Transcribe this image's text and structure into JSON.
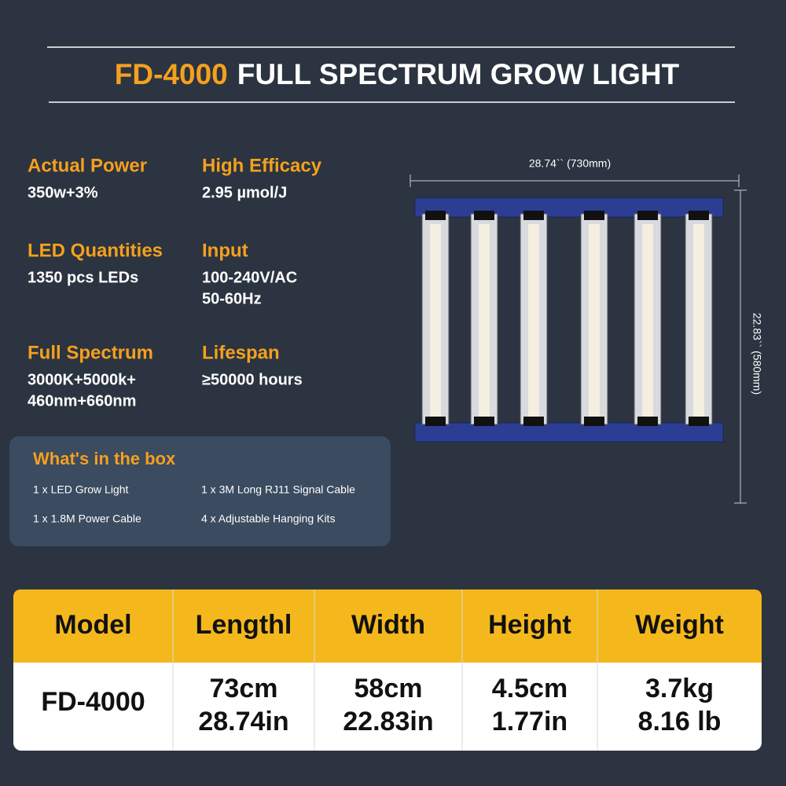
{
  "header": {
    "title_highlight": "FD-4000",
    "title": "FULL SPECTRUM GROW LIGHT"
  },
  "specs": [
    {
      "label": "Actual Power",
      "lines": [
        "350w+3%"
      ]
    },
    {
      "label": "High Efficacy",
      "lines": [
        "2.95 µmol/J"
      ]
    },
    {
      "label": "LED Quantities",
      "lines": [
        "1350 pcs LEDs"
      ]
    },
    {
      "label": "Input",
      "lines": [
        "100-240V/AC",
        "50-60Hz"
      ]
    },
    {
      "label": "Full Spectrum",
      "lines": [
        "3000K+5000k+",
        "460nm+660nm"
      ]
    },
    {
      "label": "Lifespan",
      "lines": [
        "≥50000 hours"
      ]
    }
  ],
  "box": {
    "title": "What's in the box",
    "items": [
      "1 x LED Grow Light",
      "1 x 3M Long RJ11 Signal Cable",
      "1 x 1.8M Power Cable",
      "4 x Adjustable Hanging Kits"
    ]
  },
  "dimensions": {
    "width": "28.74`` (730mm)",
    "height": "22.83`` (580mm)"
  },
  "table": {
    "header": [
      "Model",
      "Lengthl",
      "Width",
      "Height",
      "Weight"
    ],
    "rows": [
      [
        "FD-4000",
        [
          "73cm",
          "28.74in"
        ],
        [
          "58cm",
          "22.83in"
        ],
        [
          "4.5cm",
          "1.77in"
        ],
        [
          "3.7kg",
          "8.16 lb"
        ]
      ]
    ]
  }
}
